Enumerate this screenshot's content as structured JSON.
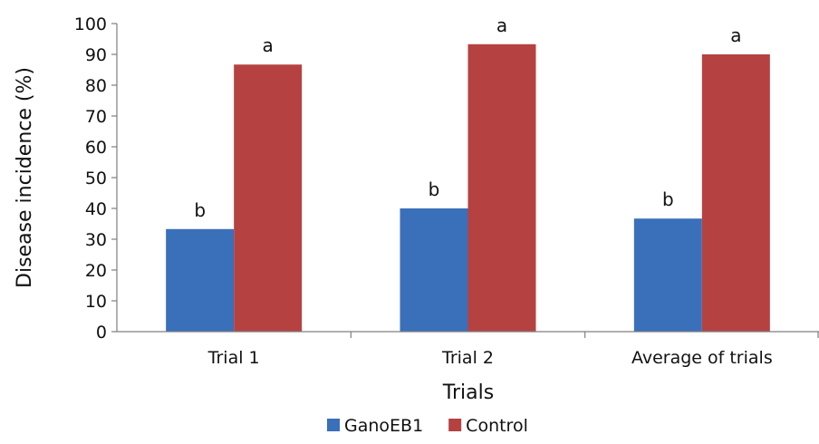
{
  "chart_data": {
    "type": "bar",
    "title": "",
    "xlabel": "Trials",
    "ylabel": "Disease incidence (%)",
    "ylim": [
      0,
      100
    ],
    "yticks": [
      0,
      10,
      20,
      30,
      40,
      50,
      60,
      70,
      80,
      90,
      100
    ],
    "grid": false,
    "legend_position": "bottom",
    "categories": [
      "Trial 1",
      "Trial 2",
      "Average of trials"
    ],
    "series": [
      {
        "name": "GanoEB1",
        "color": "#3a6fba",
        "values": [
          33.3,
          40.0,
          36.7
        ],
        "labels": [
          "b",
          "b",
          "b"
        ]
      },
      {
        "name": "Control",
        "color": "#b54241",
        "values": [
          86.7,
          93.3,
          90.0
        ],
        "labels": [
          "a",
          "a",
          "a"
        ]
      }
    ]
  }
}
